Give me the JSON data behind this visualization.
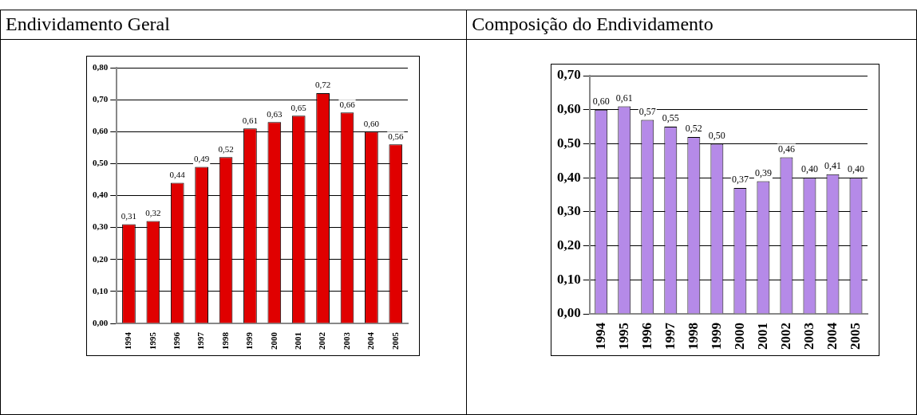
{
  "chart_data": [
    {
      "type": "bar",
      "title": "Endividamento Geral",
      "categories": [
        "1994",
        "1995",
        "1996",
        "1997",
        "1998",
        "1999",
        "2000",
        "2001",
        "2002",
        "2003",
        "2004",
        "2005"
      ],
      "series": [
        {
          "color": "#e00000",
          "values": [
            0.31,
            0.32,
            0.44,
            0.49,
            0.52,
            0.61,
            0.63,
            0.65,
            0.72,
            0.66,
            0.6,
            0.56
          ],
          "value_labels": [
            "0,31",
            "0,32",
            "0,44",
            "0,49",
            "0,52",
            "0,61",
            "0,63",
            "0,65",
            "0,72",
            "0,66",
            "0,60",
            "0,56"
          ]
        }
      ],
      "ylim": [
        0,
        0.8
      ],
      "yticks": [
        {
          "value": 0,
          "label": "0,00"
        },
        {
          "value": 0.1,
          "label": "0,10"
        },
        {
          "value": 0.2,
          "label": "0,20"
        },
        {
          "value": 0.3,
          "label": "0,30"
        },
        {
          "value": 0.4,
          "label": "0,40"
        },
        {
          "value": 0.5,
          "label": "0,50"
        },
        {
          "value": 0.6,
          "label": "0,60"
        },
        {
          "value": 0.7,
          "label": "0,70"
        },
        {
          "value": 0.8,
          "label": "0,80"
        }
      ],
      "grid": "y",
      "legend": false
    },
    {
      "type": "bar",
      "title": "Composição do Endividamento",
      "categories": [
        "1994",
        "1995",
        "1996",
        "1997",
        "1998",
        "1999",
        "2000",
        "2001",
        "2002",
        "2003",
        "2004",
        "2005"
      ],
      "series": [
        {
          "color": "#b58ae8",
          "values": [
            0.6,
            0.61,
            0.57,
            0.55,
            0.52,
            0.5,
            0.37,
            0.39,
            0.46,
            0.4,
            0.41,
            0.4
          ],
          "value_labels": [
            "0,60",
            "0,61",
            "0,57",
            "0,55",
            "0,52",
            "0,50",
            "0,37",
            "0,39",
            "0,46",
            "0,40",
            "0,41",
            "0,40"
          ]
        }
      ],
      "ylim": [
        0,
        0.7
      ],
      "yticks": [
        {
          "value": 0,
          "label": "0,00"
        },
        {
          "value": 0.1,
          "label": "0,10"
        },
        {
          "value": 0.2,
          "label": "0,20"
        },
        {
          "value": 0.3,
          "label": "0,30"
        },
        {
          "value": 0.4,
          "label": "0,40"
        },
        {
          "value": 0.5,
          "label": "0,50"
        },
        {
          "value": 0.6,
          "label": "0,60"
        },
        {
          "value": 0.7,
          "label": "0,70"
        }
      ],
      "grid": "y",
      "legend": false
    }
  ]
}
